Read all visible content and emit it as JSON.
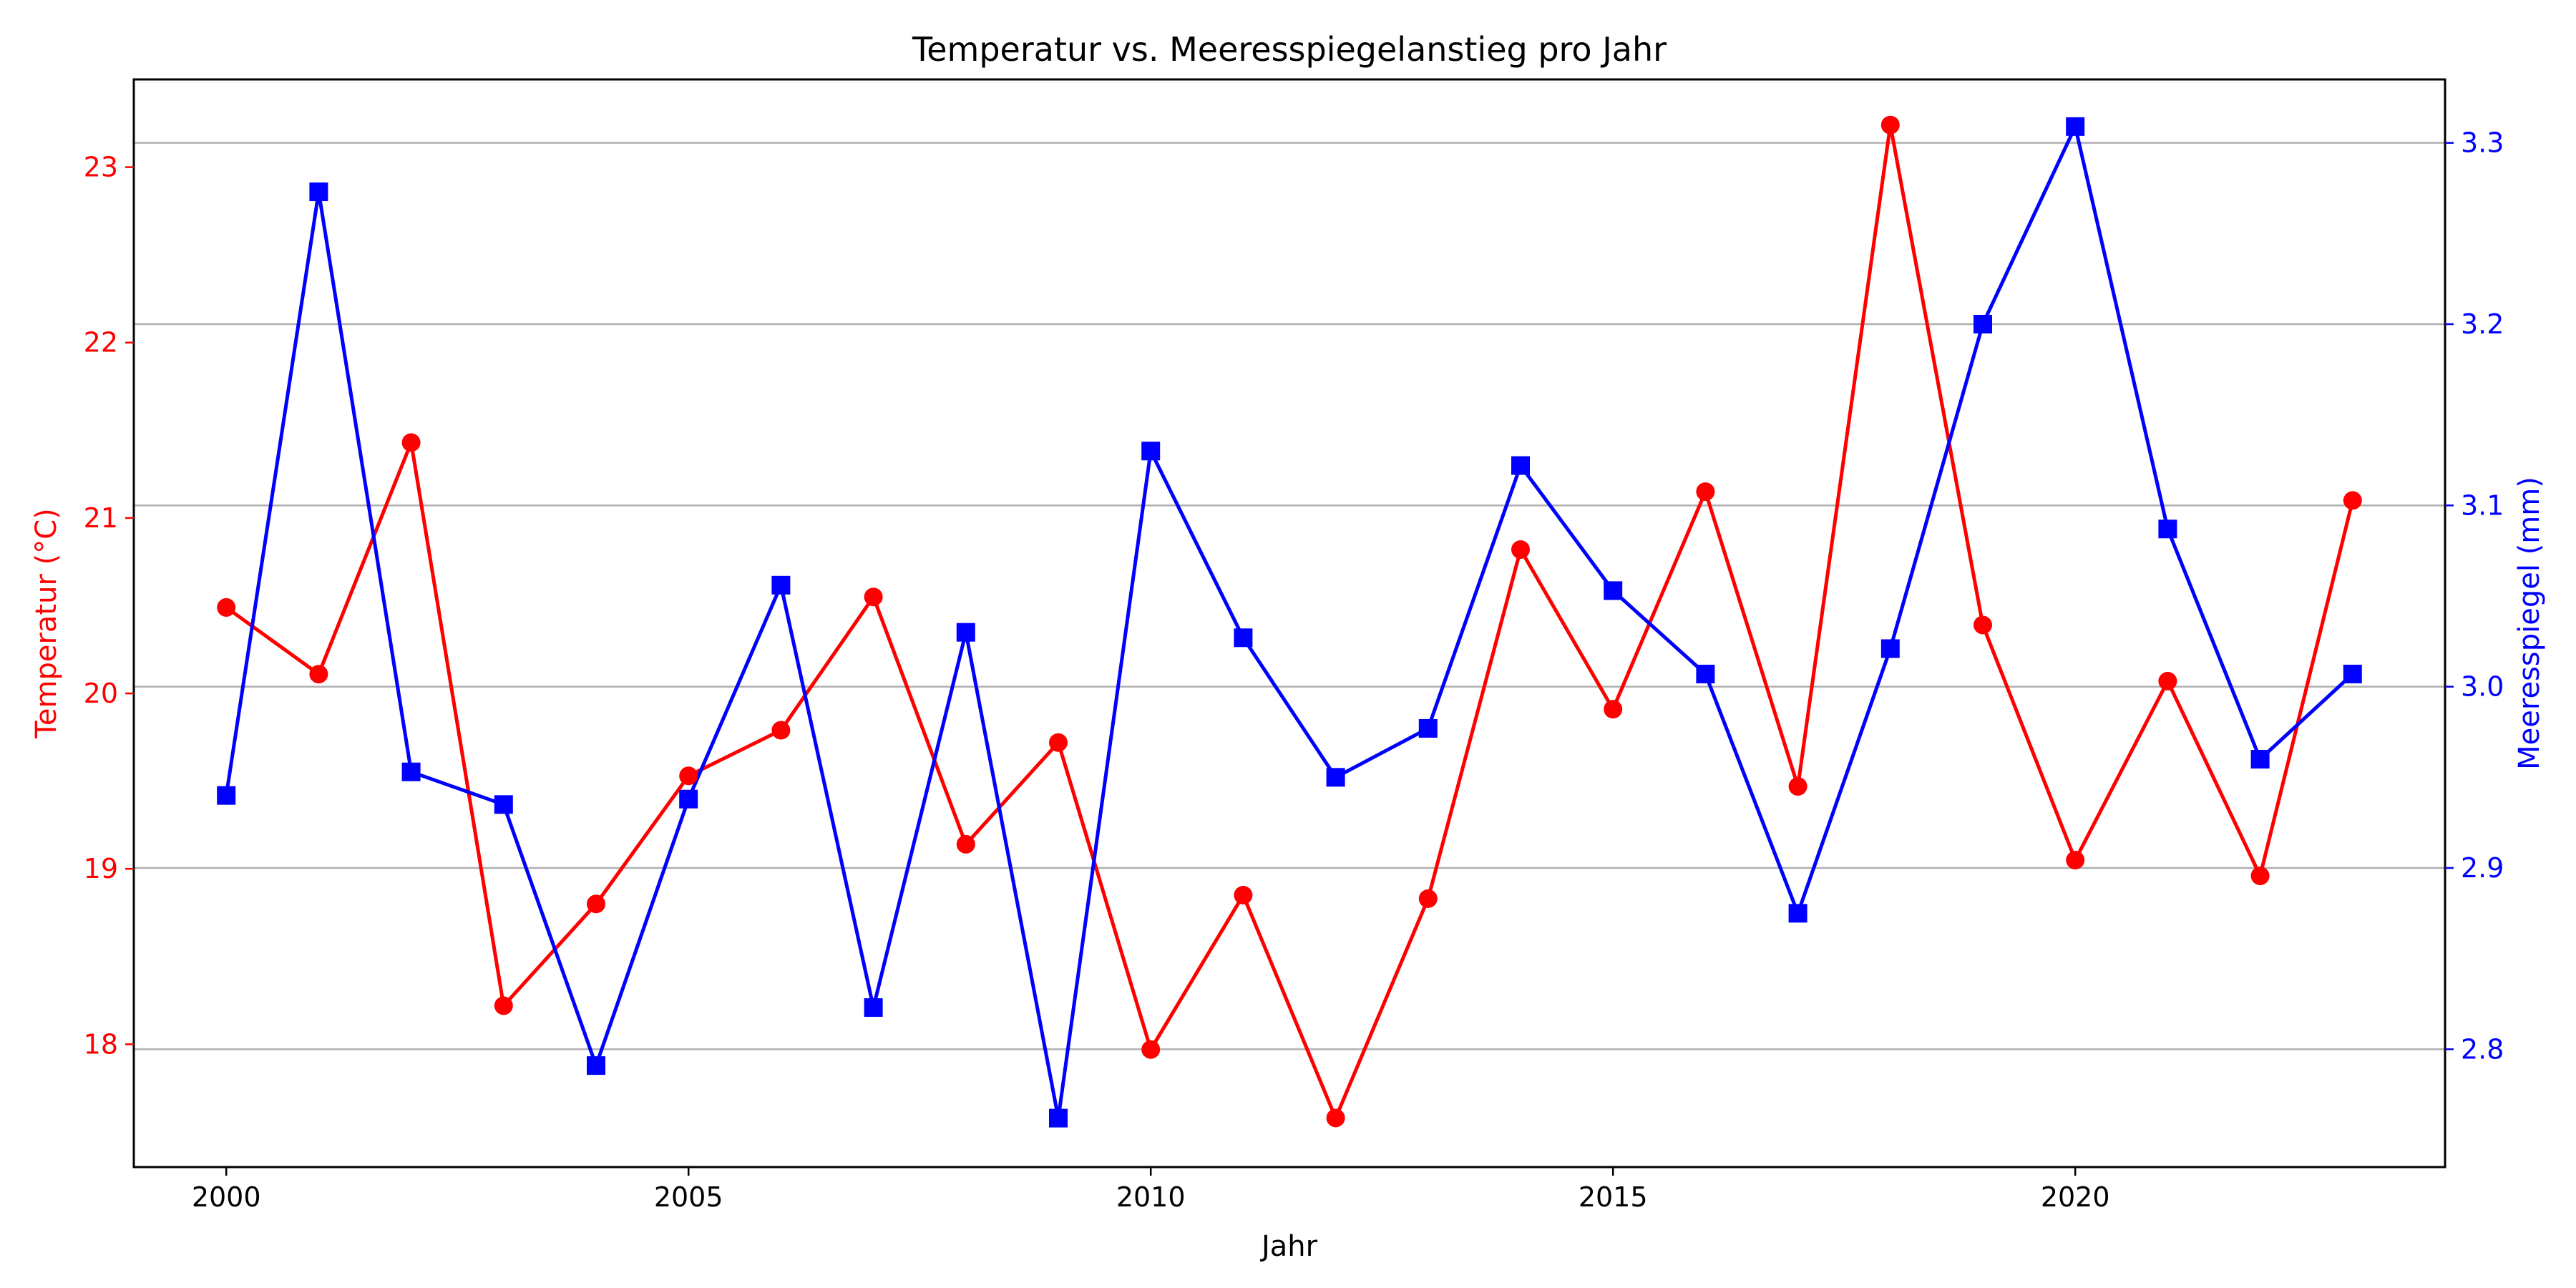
{
  "chart_data": {
    "type": "line",
    "title": "Temperatur vs. Meeresspiegelanstieg pro Jahr",
    "xlabel": "Jahr",
    "ylabel_left": "Temperatur (°C)",
    "ylabel_right": "Meeresspiegel (mm)",
    "xlim": [
      1999,
      2024
    ],
    "ylim_left": [
      17.3,
      23.5
    ],
    "ylim_right": [
      2.735,
      3.335
    ],
    "x_ticks": [
      "2000",
      "2005",
      "2010",
      "2015",
      "2020"
    ],
    "y_ticks_left": [
      "18",
      "19",
      "20",
      "21",
      "22",
      "23"
    ],
    "y_ticks_right": [
      "2.8",
      "2.9",
      "3.0",
      "3.1",
      "3.2",
      "3.3"
    ],
    "grid": "horizontal lines at right-axis ticks",
    "colors": {
      "left": "#ff0000",
      "right": "#0000ff"
    },
    "x": [
      2000,
      2001,
      2002,
      2003,
      2004,
      2005,
      2006,
      2007,
      2008,
      2009,
      2010,
      2011,
      2012,
      2013,
      2014,
      2015,
      2016,
      2017,
      2018,
      2019,
      2020,
      2021,
      2022,
      2023
    ],
    "series": [
      {
        "axis": "left",
        "marker": "circle",
        "color": "#ff0000",
        "values": [
          20.49,
          20.11,
          21.43,
          18.22,
          18.8,
          19.53,
          19.79,
          20.55,
          19.14,
          19.72,
          17.97,
          18.85,
          17.58,
          18.83,
          20.82,
          19.91,
          21.15,
          19.47,
          23.24,
          20.39,
          19.05,
          20.07,
          18.96,
          21.1
        ]
      },
      {
        "axis": "right",
        "marker": "square",
        "color": "#0000ff",
        "values": [
          2.94,
          3.273,
          2.953,
          2.935,
          2.791,
          2.938,
          3.056,
          2.823,
          3.03,
          2.762,
          3.13,
          3.027,
          2.95,
          2.977,
          3.122,
          3.053,
          3.007,
          2.875,
          3.021,
          3.2,
          3.309,
          3.087,
          2.96,
          3.007
        ]
      }
    ]
  }
}
